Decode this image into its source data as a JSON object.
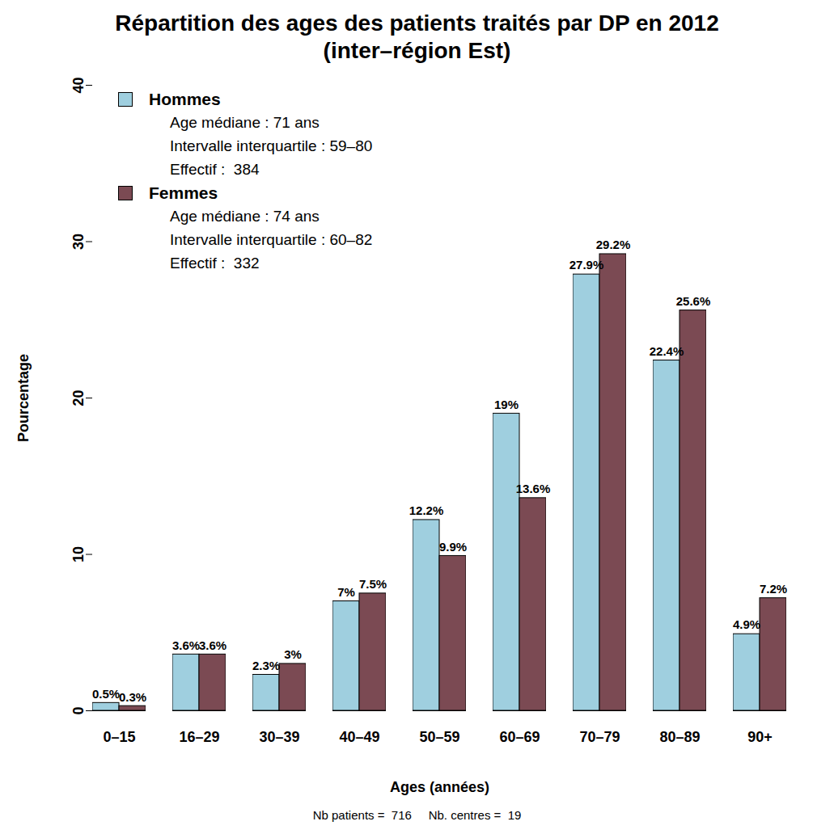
{
  "chart_data": {
    "type": "bar",
    "title": "Répartition des ages des patients traités par DP en 2012",
    "subtitle": "(inter–région Est)",
    "x_label": "Ages (années)",
    "y_label": "Pourcentage",
    "caption": "Nb patients =  716     Nb. centres =  19",
    "categories": [
      "0–15",
      "16–29",
      "30–39",
      "40–49",
      "50–59",
      "60–69",
      "70–79",
      "80–89",
      "90+"
    ],
    "series": [
      {
        "name": "Hommes",
        "color": "#9fcfdf",
        "annotations": [
          "Age médiane : 71 ans",
          "Intervalle interquartile : 59–80",
          "Effectif :  384"
        ],
        "values": [
          0.5,
          3.6,
          2.3,
          7,
          12.2,
          19,
          27.9,
          22.4,
          4.9
        ],
        "value_labels": [
          "0.5%",
          "3.6%",
          "2.3%",
          "7%",
          "12.2%",
          "19%",
          "27.9%",
          "22.4%",
          "4.9%"
        ]
      },
      {
        "name": "Femmes",
        "color": "#7b4a53",
        "annotations": [
          "Age médiane : 74 ans",
          "Intervalle interquartile : 60–82",
          "Effectif :  332"
        ],
        "values": [
          0.3,
          3.6,
          3,
          7.5,
          9.9,
          13.6,
          29.2,
          25.6,
          7.2
        ],
        "value_labels": [
          "0.3%",
          "3.6%",
          "3%",
          "7.5%",
          "9.9%",
          "13.6%",
          "29.2%",
          "25.6%",
          "7.2%"
        ]
      }
    ],
    "ylim": [
      0,
      40
    ],
    "yticks": [
      0,
      10,
      20,
      30,
      40
    ],
    "grid": false,
    "legend": "top-left",
    "data_labels": true
  }
}
